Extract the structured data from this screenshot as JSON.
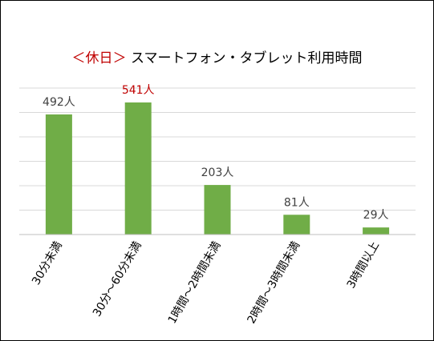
{
  "chart_data": {
    "type": "bar",
    "title_tag": "＜休日＞",
    "title": "スマートフォン・タブレット利用時間",
    "categories": [
      "30分未満",
      "30分～60分未満",
      "1時間～2時間未満",
      "2時間～3時間未満",
      "3時間以上"
    ],
    "values": [
      492,
      541,
      203,
      81,
      29
    ],
    "data_labels": [
      "492人",
      "541人",
      "203人",
      "81人",
      "29人"
    ],
    "highlight_index": 1,
    "colors": {
      "bar": "#70ad47",
      "label": "#404040",
      "highlight_label": "#c00000",
      "grid": "#d9d9d9",
      "axis": "#bfbfbf"
    },
    "ylim": [
      0,
      600
    ],
    "grid": true,
    "legend": "none",
    "xlabel": "",
    "ylabel": ""
  }
}
